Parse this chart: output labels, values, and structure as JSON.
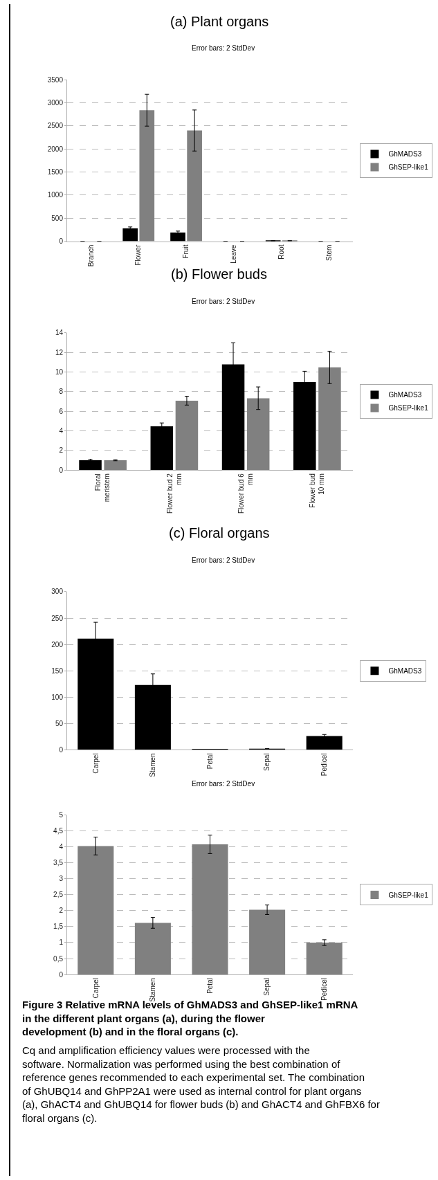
{
  "chart_data": [
    {
      "type": "bar",
      "title": "(a) Plant organs",
      "subtitle": "Error bars: 2 StdDev",
      "categories": [
        "Branch",
        "Flower",
        "Fruit",
        "Leave",
        "Root",
        "Stem"
      ],
      "series": [
        {
          "name": "GhMADS3",
          "color": "#000000",
          "values": [
            0,
            280,
            190,
            0,
            10,
            0
          ],
          "errors": [
            null,
            30,
            30,
            null,
            null,
            null
          ]
        },
        {
          "name": "GhSEP-like1",
          "color": "#808080",
          "values": [
            0,
            2840,
            2400,
            0,
            10,
            0
          ],
          "errors": [
            null,
            345,
            445,
            null,
            null,
            null
          ]
        }
      ],
      "ylim": [
        0,
        3500
      ],
      "yticks": [
        0,
        500,
        1000,
        1500,
        2000,
        2500,
        3000,
        3500
      ],
      "grid": "y",
      "legend": "right"
    },
    {
      "type": "bar",
      "title": "(b) Flower buds",
      "subtitle": "Error bars: 2 StdDev",
      "categories": [
        "Floral meristem",
        "Flower bud 2 mm",
        "Flower bud 6 mm",
        "Flower bud 10 mm"
      ],
      "series": [
        {
          "name": "GhMADS3",
          "color": "#000000",
          "values": [
            1.0,
            4.45,
            10.77,
            8.97
          ],
          "errors": [
            0.1,
            0.35,
            2.2,
            1.1
          ]
        },
        {
          "name": "GhSEP-like1",
          "color": "#808080",
          "values": [
            1.0,
            7.07,
            7.32,
            10.46
          ],
          "errors": [
            0.05,
            0.45,
            1.15,
            1.65
          ]
        }
      ],
      "ylim": [
        0,
        14
      ],
      "yticks": [
        0,
        2,
        4,
        6,
        8,
        10,
        12,
        14
      ],
      "grid": "y",
      "legend": "right"
    },
    {
      "type": "bar",
      "title": "(c) Floral organs",
      "subtitle": "Error bars: 2 StdDev",
      "categories": [
        "Carpel",
        "Stamen",
        "Petal",
        "Sepal",
        "Pedicel"
      ],
      "series": [
        {
          "name": "GhMADS3",
          "color": "#000000",
          "values": [
            211,
            123,
            1,
            2,
            26
          ],
          "errors": [
            31,
            21,
            null,
            null,
            3
          ]
        }
      ],
      "ylim": [
        0,
        300
      ],
      "yticks": [
        0,
        50,
        100,
        150,
        200,
        250,
        300
      ],
      "grid": "y",
      "legend": "right"
    },
    {
      "type": "bar",
      "subtitle": "Error bars: 2 StdDev",
      "categories": [
        "Carpel",
        "Stamen",
        "Petal",
        "Sepal",
        "Pedicel"
      ],
      "series": [
        {
          "name": "GhSEP-like1",
          "color": "#808080",
          "values": [
            4.03,
            1.62,
            4.08,
            2.03,
            1.0
          ],
          "errors": [
            0.28,
            0.17,
            0.29,
            0.15,
            0.09
          ]
        }
      ],
      "ylim": [
        0,
        5
      ],
      "yticks": [
        0,
        {
          "value": 0.5,
          "label": "0,5"
        },
        1,
        {
          "value": 1.5,
          "label": "1,5"
        },
        2,
        {
          "value": 2.5,
          "label": "2,5"
        },
        3,
        {
          "value": 3.5,
          "label": "3,5"
        },
        4,
        {
          "value": 4.5,
          "label": "4,5"
        },
        5
      ],
      "grid": "y",
      "legend": "right",
      "annotations": [
        "Figure 3 Relative mRNA levels of GhMADS3 and GhSEP-like1 mRNA in the different plant organs (a), during the flower development (b) and in the floral organs (c).",
        "Cq and amplification efficiency values were processed with the software. Normalization was performed using the best combination of reference genes recommended to each experimental set. The combination of GhUBQ14 and GhPP2A1 were used as internal control for plant organs (a), GhACT4 and GhUBQ14 for flower buds (b) and GhACT4 and GhFBX6 for floral organs (c)."
      ]
    }
  ]
}
